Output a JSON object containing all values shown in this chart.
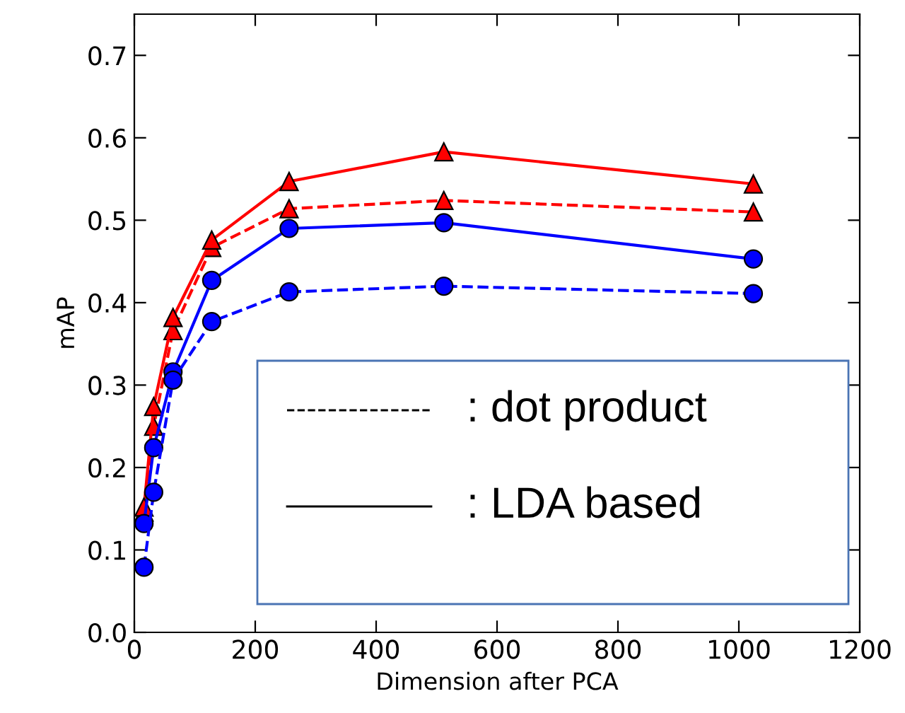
{
  "chart_data": {
    "type": "line",
    "xlabel": "Dimension after PCA",
    "ylabel": "mAP",
    "xlim": [
      0,
      1200
    ],
    "xticks": [
      0,
      200,
      400,
      600,
      800,
      1000,
      1200
    ],
    "ylim": [
      0,
      0.75
    ],
    "yticks": [
      {
        "value": 0,
        "label": "0.0"
      },
      {
        "value": 0.1,
        "label": "0.1"
      },
      {
        "value": 0.2,
        "label": "0.2"
      },
      {
        "value": 0.3,
        "label": "0.3"
      },
      {
        "value": 0.4,
        "label": "0.4"
      },
      {
        "value": 0.5,
        "label": "0.5"
      },
      {
        "value": 0.6,
        "label": "0.6"
      },
      {
        "value": 0.7,
        "label": "0.7"
      }
    ],
    "x": [
      16,
      32,
      64,
      128,
      256,
      512,
      1024
    ],
    "series": [
      {
        "color": "#ff0000",
        "marker": "triangle",
        "line_style": "dashed",
        "values": [
          0.146,
          0.25,
          0.366,
          0.467,
          0.514,
          0.524,
          0.51
        ]
      },
      {
        "color": "#ff0000",
        "marker": "triangle",
        "line_style": "solid",
        "values": [
          0.152,
          0.274,
          0.382,
          0.476,
          0.547,
          0.583,
          0.544
        ]
      },
      {
        "color": "#0000ff",
        "marker": "circle",
        "line_style": "solid",
        "values": [
          0.132,
          0.224,
          0.316,
          0.427,
          0.49,
          0.497,
          0.453
        ]
      },
      {
        "color": "#0000ff",
        "marker": "circle",
        "line_style": "dashed",
        "values": [
          0.079,
          0.17,
          0.306,
          0.377,
          0.413,
          0.42,
          0.411
        ]
      }
    ],
    "annotations": [
      ": dot product",
      ": LDA based"
    ],
    "grid": false
  }
}
